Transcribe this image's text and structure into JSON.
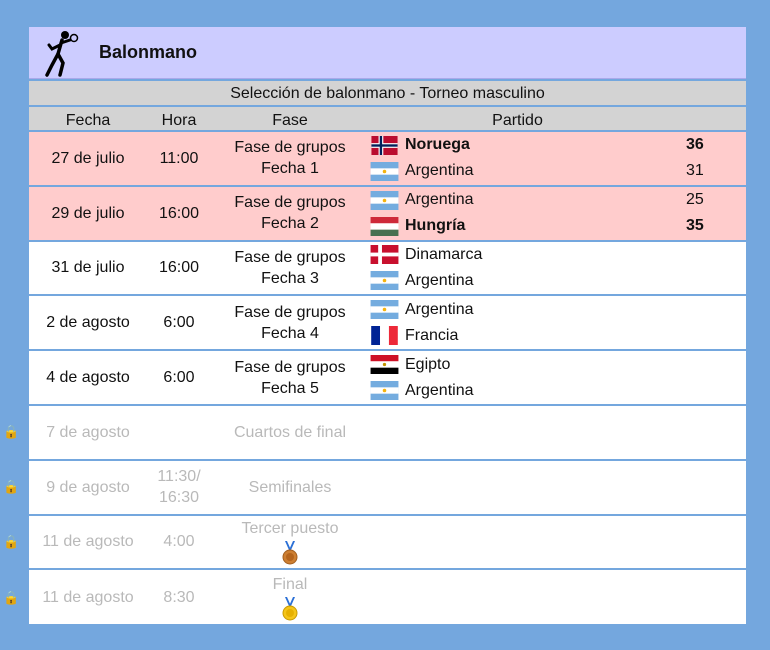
{
  "header": {
    "title": "Balonmano",
    "icon": "handball-player-icon"
  },
  "subtitle": "Selección de balonmano - Torneo masculino",
  "columns": {
    "fecha": "Fecha",
    "hora": "Hora",
    "fase": "Fase",
    "partido": "Partido"
  },
  "colors": {
    "background": "#74a7de",
    "header": "#ccccff",
    "played_row": "#ffcccc",
    "future_text": "#b9b9b9"
  },
  "rows": [
    {
      "fecha": "27 de julio",
      "hora": "11:00",
      "fase_1": "Fase de grupos",
      "fase_2": "Fecha 1",
      "team1": {
        "name": "Noruega",
        "score": "36",
        "flag": "norway"
      },
      "team2": {
        "name": "Argentina",
        "score": "31",
        "flag": "argentina"
      }
    },
    {
      "fecha": "29 de julio",
      "hora": "16:00",
      "fase_1": "Fase de grupos",
      "fase_2": "Fecha 2",
      "team1": {
        "name": "Argentina",
        "score": "25",
        "flag": "argentina"
      },
      "team2": {
        "name": "Hungría",
        "score": "35",
        "flag": "hungary"
      }
    },
    {
      "fecha": "31 de julio",
      "hora": "16:00",
      "fase_1": "Fase de grupos",
      "fase_2": "Fecha 3",
      "team1": {
        "name": "Dinamarca",
        "flag": "denmark"
      },
      "team2": {
        "name": "Argentina",
        "flag": "argentina"
      }
    },
    {
      "fecha": "2 de agosto",
      "hora": "6:00",
      "fase_1": "Fase de grupos",
      "fase_2": "Fecha 4",
      "team1": {
        "name": "Argentina",
        "flag": "argentina"
      },
      "team2": {
        "name": "Francia",
        "flag": "france"
      }
    },
    {
      "fecha": "4 de agosto",
      "hora": "6:00",
      "fase_1": "Fase de grupos",
      "fase_2": "Fecha 5",
      "team1": {
        "name": "Egipto",
        "flag": "egypt"
      },
      "team2": {
        "name": "Argentina",
        "flag": "argentina"
      }
    },
    {
      "fecha": "7 de agosto",
      "hora": "",
      "fase_1": "Cuartos de final"
    },
    {
      "fecha": "9 de agosto",
      "hora_1": "11:30/",
      "hora_2": "16:30",
      "fase_1": "Semifinales"
    },
    {
      "fecha": "11 de agosto",
      "hora": "4:00",
      "fase_1": "Tercer puesto",
      "medal": "bronze-medal-icon"
    },
    {
      "fecha": "11 de agosto",
      "hora": "8:30",
      "fase_1": "Final",
      "medal": "gold-medal-icon"
    }
  ]
}
